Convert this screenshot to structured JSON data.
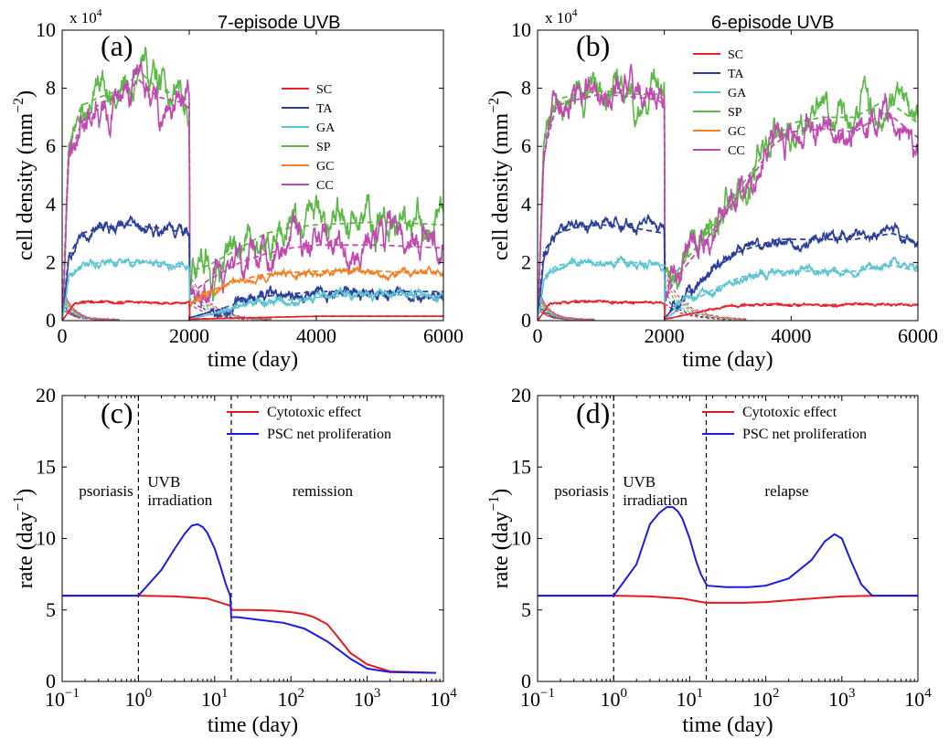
{
  "colors": {
    "SC": "#e8232b",
    "TA": "#2b3f9a",
    "GA": "#5ec4d4",
    "SP": "#5cb947",
    "GC": "#f28024",
    "CC": "#c04ab0",
    "cytotoxic": "#e31a1c",
    "psc": "#1c1ce0"
  },
  "chart_data": [
    {
      "panel": "(a)",
      "type": "line",
      "title": "7-episode UVB",
      "xlabel": "time (day)",
      "ylabel": "cell density (mm−2)",
      "y_multiplier": "x 10^4",
      "xlim": [
        0,
        6000
      ],
      "ylim": [
        0,
        100000
      ],
      "xticks": [
        "0",
        "2000",
        "4000",
        "6000"
      ],
      "yticks": [
        "0",
        "2",
        "4",
        "6",
        "8",
        "10"
      ],
      "legend": [
        "SC",
        "TA",
        "GA",
        "SP",
        "GC",
        "CC"
      ],
      "legend_position": "right",
      "note": "solid = stochastic, dashed = mean; dense lower lines approximated",
      "series": [
        {
          "name": "SP",
          "x": [
            0,
            100,
            300,
            600,
            1000,
            1200,
            1500,
            1900,
            2000,
            2010,
            2300,
            2800,
            3200,
            3600,
            4000,
            5000,
            6000
          ],
          "y": [
            0,
            60000,
            74000,
            77000,
            80000,
            86000,
            80000,
            77000,
            75000,
            17000,
            19000,
            25000,
            30000,
            32000,
            33000,
            34000,
            33000
          ]
        },
        {
          "name": "CC",
          "x": [
            0,
            100,
            300,
            600,
            1000,
            1200,
            1500,
            1900,
            2000,
            2010,
            2300,
            2800,
            3200,
            3600,
            4000,
            5000,
            6000
          ],
          "y": [
            0,
            55000,
            68000,
            75000,
            78000,
            83000,
            77000,
            75000,
            73000,
            9000,
            14000,
            20000,
            23000,
            25000,
            26000,
            26000,
            25000
          ]
        },
        {
          "name": "GC",
          "x": [
            2000,
            2010,
            2300,
            2800,
            3200,
            4000,
            5000,
            6000
          ],
          "y": [
            0,
            6000,
            10000,
            14000,
            16000,
            17000,
            17000,
            16000
          ]
        },
        {
          "name": "TA",
          "x": [
            0,
            100,
            300,
            600,
            1000,
            1500,
            2000,
            2010,
            2500,
            3000,
            4000,
            5000,
            6000
          ],
          "y": [
            0,
            22000,
            30000,
            32000,
            33000,
            32000,
            30000,
            1000,
            4000,
            8000,
            10000,
            10000,
            10000
          ]
        },
        {
          "name": "GA",
          "x": [
            0,
            100,
            300,
            600,
            1000,
            1500,
            2000,
            2010,
            2500,
            3000,
            4000,
            5000,
            6000
          ],
          "y": [
            0,
            14000,
            19000,
            20000,
            20000,
            20000,
            18000,
            500,
            3000,
            6000,
            8000,
            9000,
            8500
          ]
        },
        {
          "name": "SC",
          "x": [
            0,
            200,
            1000,
            2000,
            2010,
            3000,
            4000,
            6000
          ],
          "y": [
            0,
            6000,
            6500,
            6000,
            500,
            1000,
            1500,
            1500
          ]
        }
      ]
    },
    {
      "panel": "(b)",
      "type": "line",
      "title": "6-episode UVB",
      "xlabel": "time (day)",
      "ylabel": "cell density (mm−2)",
      "y_multiplier": "x 10^4",
      "xlim": [
        0,
        6000
      ],
      "ylim": [
        0,
        100000
      ],
      "xticks": [
        "0",
        "2000",
        "4000",
        "6000"
      ],
      "yticks": [
        "0",
        "2",
        "4",
        "6",
        "8",
        "10"
      ],
      "legend": [
        "SC",
        "TA",
        "GA",
        "SP",
        "GC",
        "CC"
      ],
      "legend_position": "top-right",
      "note": "solid = stochastic, dashed = mean; dense lower lines approximated",
      "series": [
        {
          "name": "SP",
          "x": [
            0,
            100,
            300,
            600,
            1000,
            1500,
            1900,
            2000,
            2010,
            2200,
            2600,
            3000,
            3400,
            3700,
            4000,
            4500,
            5000,
            5500,
            6000
          ],
          "y": [
            0,
            62000,
            76000,
            78000,
            79000,
            78000,
            78000,
            75000,
            10000,
            17000,
            28000,
            40000,
            52000,
            62000,
            68000,
            70000,
            70000,
            76000,
            68000
          ]
        },
        {
          "name": "CC",
          "x": [
            0,
            100,
            300,
            600,
            1000,
            1500,
            1900,
            2000,
            2010,
            2200,
            2600,
            3000,
            3400,
            3700,
            4000,
            4500,
            5000,
            5500,
            6000
          ],
          "y": [
            0,
            58000,
            74000,
            76000,
            78000,
            77000,
            76000,
            74000,
            8000,
            15000,
            26000,
            38000,
            50000,
            60000,
            65000,
            66000,
            65000,
            72000,
            63000
          ]
        },
        {
          "name": "TA",
          "x": [
            0,
            100,
            300,
            600,
            1000,
            1500,
            2000,
            2010,
            2300,
            2800,
            3200,
            3800,
            4500,
            5000,
            5600,
            6000
          ],
          "y": [
            0,
            24000,
            30000,
            32000,
            33000,
            32000,
            30000,
            1000,
            8000,
            18000,
            24000,
            28000,
            28000,
            28000,
            30000,
            27000
          ]
        },
        {
          "name": "GA",
          "x": [
            0,
            100,
            300,
            600,
            1000,
            1500,
            2000,
            2010,
            2300,
            2800,
            3200,
            3800,
            4500,
            5000,
            5600,
            6000
          ],
          "y": [
            0,
            15000,
            19000,
            20000,
            20000,
            20000,
            19000,
            500,
            5000,
            11000,
            15000,
            17000,
            17000,
            17000,
            19000,
            17000
          ]
        },
        {
          "name": "SC",
          "x": [
            0,
            200,
            1000,
            2000,
            2010,
            3000,
            4000,
            6000
          ],
          "y": [
            0,
            6000,
            6500,
            6200,
            500,
            5000,
            5500,
            5500
          ]
        }
      ]
    },
    {
      "panel": "(c)",
      "type": "line",
      "scale_x": "log",
      "xlabel": "time (day)",
      "ylabel": "rate (day−1)",
      "xlim": [
        0.1,
        10000
      ],
      "ylim": [
        0,
        20
      ],
      "xticks": [
        "10−1",
        "100",
        "101",
        "102",
        "103",
        "104"
      ],
      "yticks": [
        "0",
        "5",
        "10",
        "15",
        "20"
      ],
      "legend": [
        "Cytotoxic effect",
        "PSC net proliferation"
      ],
      "legend_position": "top-right",
      "vlines": [
        1,
        16.5
      ],
      "region_labels": [
        "psoriasis",
        "UVB irradiation",
        "remission"
      ],
      "series": [
        {
          "name": "Cytotoxic effect",
          "x": [
            0.1,
            1,
            3,
            8,
            16,
            17,
            30,
            60,
            100,
            150,
            200,
            300,
            400,
            600,
            1000,
            2000,
            8000
          ],
          "y": [
            6,
            6,
            5.95,
            5.8,
            5.3,
            5,
            5,
            4.95,
            4.85,
            4.7,
            4.5,
            4,
            3.2,
            2,
            1.2,
            0.7,
            0.6
          ]
        },
        {
          "name": "PSC net proliferation",
          "x": [
            0.1,
            1,
            2,
            3,
            4,
            5,
            6,
            7,
            8,
            10,
            12,
            14,
            16,
            16.5,
            20,
            40,
            80,
            150,
            300,
            600,
            1000,
            2000,
            8000
          ],
          "y": [
            6,
            6,
            7.8,
            9.3,
            10.3,
            10.9,
            11,
            10.8,
            10.4,
            9.3,
            8,
            6.8,
            6,
            4.5,
            4.5,
            4.3,
            4.1,
            3.7,
            2.8,
            1.6,
            0.9,
            0.65,
            0.6
          ]
        }
      ]
    },
    {
      "panel": "(d)",
      "type": "line",
      "scale_x": "log",
      "xlabel": "time (day)",
      "ylabel": "rate (day−1)",
      "xlim": [
        0.1,
        10000
      ],
      "ylim": [
        0,
        20
      ],
      "xticks": [
        "10−1",
        "100",
        "101",
        "102",
        "103",
        "104"
      ],
      "yticks": [
        "0",
        "5",
        "10",
        "15",
        "20"
      ],
      "legend": [
        "Cytotoxic effect",
        "PSC net proliferation"
      ],
      "legend_position": "top-right",
      "vlines": [
        1,
        16.5
      ],
      "region_labels": [
        "psoriasis",
        "UVB irradiation",
        "relapse"
      ],
      "series": [
        {
          "name": "Cytotoxic effect",
          "x": [
            0.1,
            1,
            3,
            8,
            16.5,
            20,
            50,
            100,
            300,
            1000,
            3000,
            10000
          ],
          "y": [
            6,
            6,
            5.95,
            5.8,
            5.5,
            5.5,
            5.5,
            5.55,
            5.75,
            5.95,
            6,
            6
          ]
        },
        {
          "name": "PSC net proliferation",
          "x": [
            0.1,
            1,
            2,
            3,
            4,
            5,
            6,
            7,
            8,
            10,
            12,
            14,
            16.5,
            17,
            30,
            60,
            100,
            200,
            400,
            600,
            800,
            1000,
            1300,
            1800,
            2500,
            5000,
            10000
          ],
          "y": [
            6,
            6,
            8.2,
            11,
            11.8,
            12.2,
            12.2,
            11.9,
            11.4,
            10,
            8.5,
            7.5,
            6.8,
            6.7,
            6.6,
            6.6,
            6.7,
            7.2,
            8.5,
            9.8,
            10.3,
            10,
            8.5,
            6.8,
            6,
            6,
            6
          ]
        }
      ]
    }
  ]
}
